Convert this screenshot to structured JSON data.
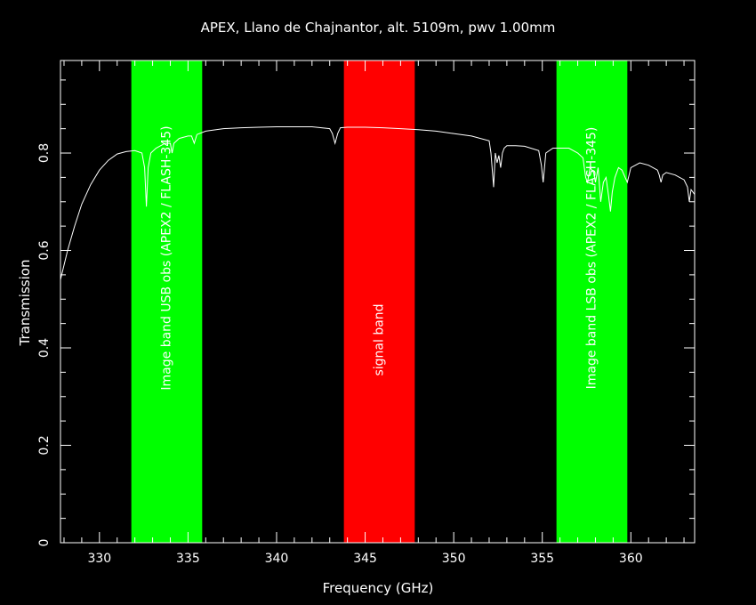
{
  "chart_data": {
    "type": "line",
    "title": "APEX, Llano de Chajnantor, alt. 5109m, pwv 1.00mm",
    "xlabel": "Frequency (GHz)",
    "ylabel": "Transmission",
    "xlim": [
      327.8,
      363.6
    ],
    "ylim": [
      0,
      0.99
    ],
    "xticks": [
      330,
      335,
      340,
      345,
      350,
      355,
      360
    ],
    "xtick_labels": [
      "330",
      "335",
      "340",
      "345",
      "350",
      "355",
      "360"
    ],
    "yticks": [
      0,
      0.2,
      0.4,
      0.6,
      0.8
    ],
    "ytick_labels": [
      "0",
      "0.2",
      "0.4",
      "0.6",
      "0.8"
    ],
    "bands": [
      {
        "name": "Image band USB obs (APEX2 / FLASH-345)",
        "x0": 331.8,
        "x1": 335.8,
        "color": "#00ff00"
      },
      {
        "name": "signal band",
        "x0": 343.8,
        "x1": 347.8,
        "color": "#ff0000"
      },
      {
        "name": "Image band LSB obs (APEX2 / FLASH-345)",
        "x0": 355.8,
        "x1": 359.8,
        "color": "#00ff00"
      }
    ],
    "series": [
      {
        "color": "#ffffff",
        "x": [
          327.8,
          328.2,
          328.6,
          329.0,
          329.5,
          330.0,
          330.5,
          331.0,
          331.5,
          332.0,
          332.4,
          332.55,
          332.65,
          332.75,
          332.9,
          333.2,
          333.7,
          334.0,
          334.1,
          334.2,
          334.5,
          335.0,
          335.2,
          335.35,
          335.5,
          336.0,
          337.0,
          338.0,
          339.0,
          340.0,
          341.0,
          342.0,
          343.0,
          343.15,
          343.3,
          343.45,
          343.6,
          344.0,
          345.0,
          346.0,
          347.0,
          348.0,
          349.0,
          350.0,
          351.0,
          352.0,
          352.1,
          352.25,
          352.35,
          352.45,
          352.55,
          352.65,
          352.75,
          352.85,
          353.0,
          353.5,
          354.0,
          354.8,
          354.95,
          355.05,
          355.2,
          355.6,
          356.0,
          356.5,
          357.0,
          357.3,
          357.45,
          357.55,
          357.7,
          357.9,
          358.0,
          358.15,
          358.3,
          358.45,
          358.6,
          358.75,
          358.85,
          358.95,
          359.1,
          359.3,
          359.5,
          359.8,
          360.0,
          360.5,
          361.0,
          361.5,
          361.6,
          361.7,
          361.8,
          362.0,
          362.5,
          363.0,
          363.2,
          363.3,
          363.4,
          363.5,
          363.6
        ],
        "y": [
          0.54,
          0.6,
          0.65,
          0.695,
          0.735,
          0.765,
          0.785,
          0.798,
          0.803,
          0.805,
          0.8,
          0.77,
          0.69,
          0.77,
          0.8,
          0.81,
          0.82,
          0.82,
          0.8,
          0.82,
          0.83,
          0.835,
          0.835,
          0.82,
          0.838,
          0.845,
          0.85,
          0.852,
          0.853,
          0.854,
          0.854,
          0.854,
          0.85,
          0.84,
          0.82,
          0.84,
          0.852,
          0.853,
          0.853,
          0.852,
          0.85,
          0.848,
          0.845,
          0.84,
          0.835,
          0.825,
          0.8,
          0.73,
          0.8,
          0.78,
          0.795,
          0.77,
          0.8,
          0.81,
          0.815,
          0.815,
          0.814,
          0.805,
          0.775,
          0.74,
          0.8,
          0.81,
          0.81,
          0.81,
          0.8,
          0.79,
          0.75,
          0.74,
          0.77,
          0.76,
          0.74,
          0.77,
          0.7,
          0.74,
          0.75,
          0.71,
          0.68,
          0.72,
          0.75,
          0.77,
          0.765,
          0.74,
          0.77,
          0.78,
          0.775,
          0.765,
          0.755,
          0.74,
          0.755,
          0.76,
          0.755,
          0.745,
          0.73,
          0.7,
          0.725,
          0.72,
          0.715
        ]
      }
    ]
  }
}
